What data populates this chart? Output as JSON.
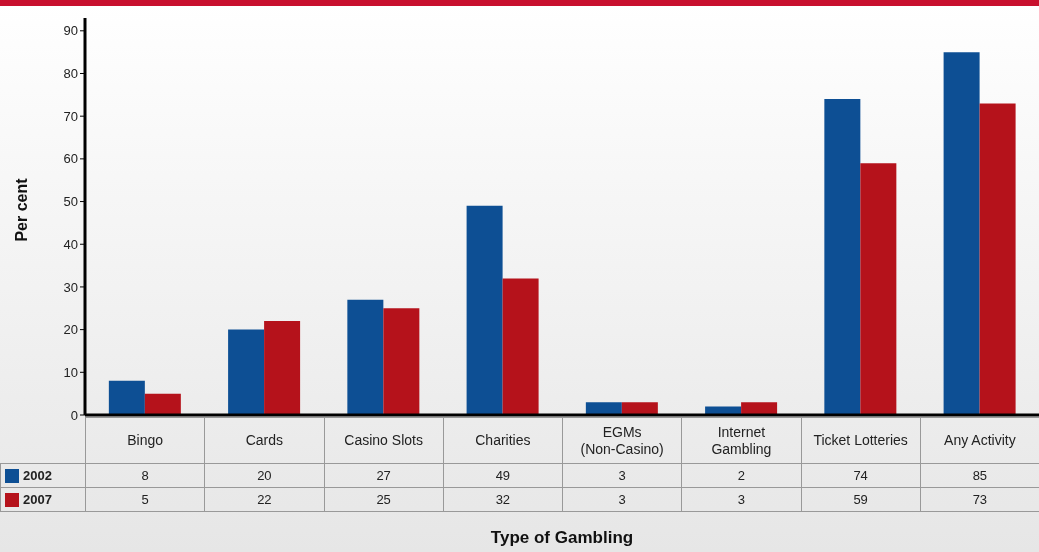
{
  "chart_data": {
    "type": "bar",
    "xlabel": "Type of Gambling",
    "ylabel": "Per cent",
    "categories": [
      "Bingo",
      "Cards",
      "Casino Slots",
      "Charities",
      "EGMs\n(Non-Casino)",
      "Internet\nGambling",
      "Ticket Lotteries",
      "Any Activity"
    ],
    "series": [
      {
        "name": "2002",
        "color": "#0d4f94",
        "values": [
          8,
          20,
          27,
          49,
          3,
          2,
          74,
          85
        ]
      },
      {
        "name": "2007",
        "color": "#b5121b",
        "values": [
          5,
          22,
          25,
          32,
          3,
          3,
          59,
          73
        ]
      }
    ],
    "ylim": [
      0,
      93
    ],
    "yticks": [
      0,
      10,
      20,
      30,
      40,
      50,
      60,
      70,
      80,
      90
    ],
    "grid": false,
    "legend": "bottom left",
    "data_labels": true
  }
}
